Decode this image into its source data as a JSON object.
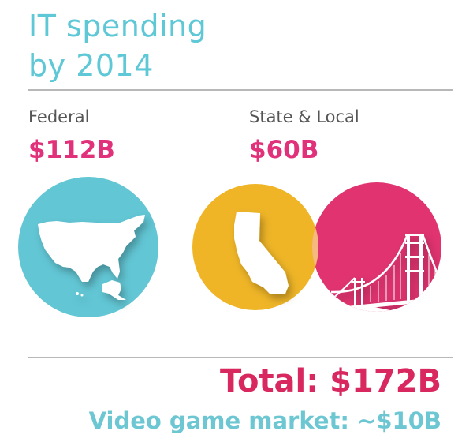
{
  "title": {
    "line1": "IT spending",
    "line2": "by 2014"
  },
  "federal": {
    "label": "Federal",
    "amount": "$112B"
  },
  "state_local": {
    "label": "State & Local",
    "amount": "$60B"
  },
  "total": "Total: $172B",
  "video_game": "Video game market: ~$10B",
  "colors": {
    "teal": "#62c6d4",
    "gold": "#efb527",
    "pink": "#e0336f",
    "overlap": "#f6b980",
    "text_pink": "#e0317a"
  },
  "icons": [
    "usa-map-icon",
    "california-map-icon",
    "golden-gate-bridge-icon"
  ]
}
